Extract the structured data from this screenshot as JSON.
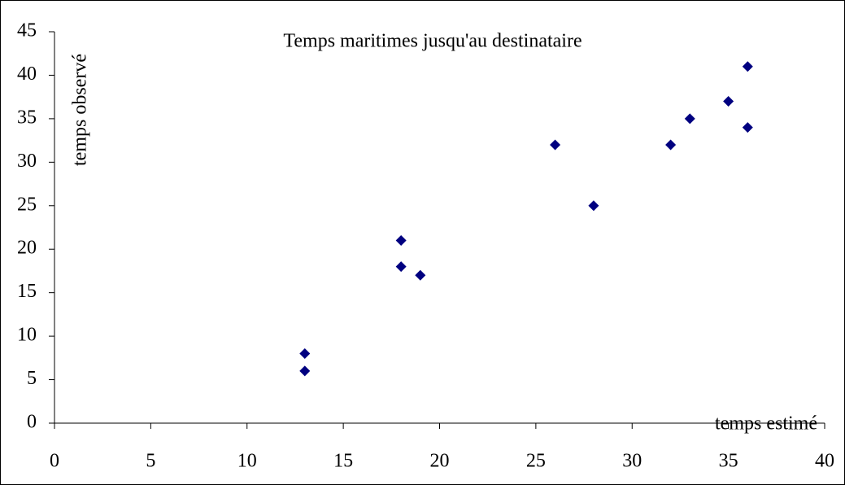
{
  "chart_data": {
    "type": "scatter",
    "title": "Temps maritimes jusqu'au destinataire",
    "x_label": "temps estimé",
    "y_label": "temps observé",
    "x": [
      13,
      13,
      18,
      18,
      19,
      26,
      28,
      32,
      33,
      35,
      36,
      36
    ],
    "values": [
      8,
      6,
      21,
      18,
      17,
      32,
      25,
      32,
      35,
      37,
      41,
      34
    ],
    "color": "#000080",
    "xlim": [
      0,
      40
    ],
    "xticks": [
      0,
      5,
      10,
      15,
      20,
      25,
      30,
      35,
      40
    ],
    "ylim": [
      0,
      45
    ],
    "yticks": [
      0,
      5,
      10,
      15,
      20,
      25,
      30,
      35,
      40,
      45
    ],
    "grid": false
  }
}
